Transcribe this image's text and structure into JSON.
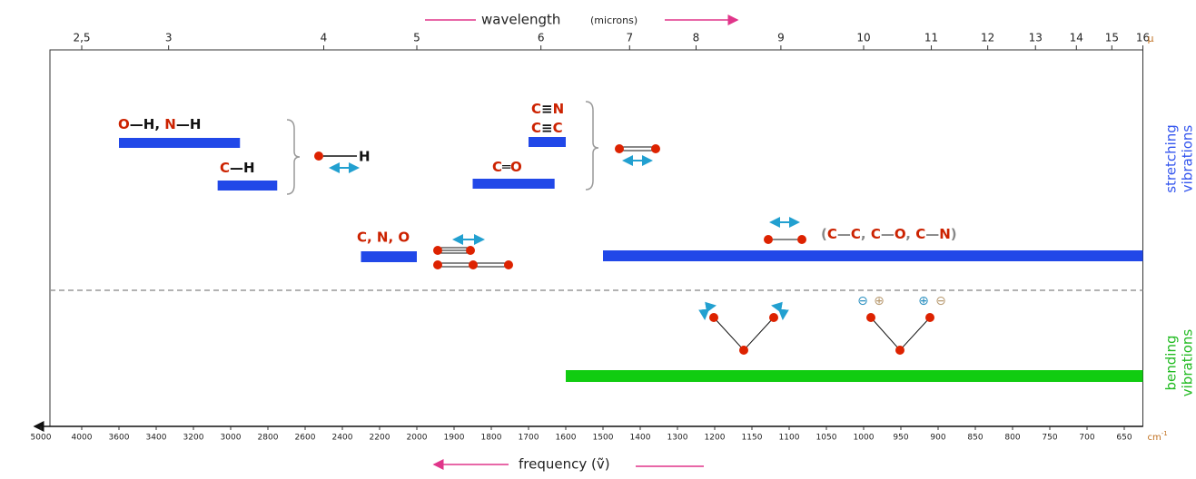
{
  "chart_data": {
    "type": "range",
    "xlim": [
      5000,
      625
    ],
    "xticks": [
      5000,
      4000,
      3600,
      3400,
      3200,
      3000,
      2800,
      2600,
      2400,
      2200,
      2000,
      1900,
      1800,
      1700,
      1600,
      1500,
      1400,
      1300,
      1200,
      1150,
      1100,
      1050,
      1000,
      950,
      900,
      850,
      800,
      750,
      700,
      650
    ],
    "x2ticks": [
      {
        "value": 2.5,
        "label": "2,5"
      },
      3,
      4,
      5,
      6,
      7,
      8,
      9,
      10,
      11,
      12,
      13,
      14,
      15,
      16
    ],
    "x2_unit": "μ",
    "x_unit": [
      "cm",
      "-1"
    ],
    "x2_label": [
      "wavelength",
      "(microns)"
    ],
    "x_label": "frequency (ṽ)",
    "bars": [
      {
        "values": [
          3600,
          2950
        ],
        "color": "#2148e8"
      },
      {
        "values": [
          3070,
          2750
        ],
        "color": "#2148e8"
      },
      {
        "values": [
          2300,
          2000
        ],
        "color": "#2148e8"
      },
      {
        "values": [
          1700,
          1600
        ],
        "color": "#2148e8"
      },
      {
        "values": [
          1850,
          1630
        ],
        "color": "#2148e8"
      },
      {
        "values": [
          1500,
          625
        ],
        "color": "#2148e8"
      },
      {
        "values": [
          1600,
          625
        ],
        "color": "#11cc11"
      }
    ]
  },
  "labels": {
    "oh_nh": [
      "O",
      "—H",
      ",",
      "N",
      "—H"
    ],
    "ch": [
      "C",
      "—H"
    ],
    "h_atom": "H",
    "cno": "C, N, O",
    "cn": [
      "C",
      "≡",
      "N"
    ],
    "cc": [
      "C",
      "≡",
      "C"
    ],
    "co": [
      "C",
      "═",
      "O"
    ],
    "single": [
      "(",
      "C",
      "—",
      "C",
      ",",
      "C",
      "—",
      "O",
      ",",
      "C",
      "—",
      "N",
      ")"
    ],
    "charges": [
      "⊖",
      "⊕",
      "⊕",
      "⊖"
    ],
    "stretching": [
      "stretching",
      "vibrations"
    ],
    "bending": [
      "bending",
      "vibrations"
    ]
  }
}
